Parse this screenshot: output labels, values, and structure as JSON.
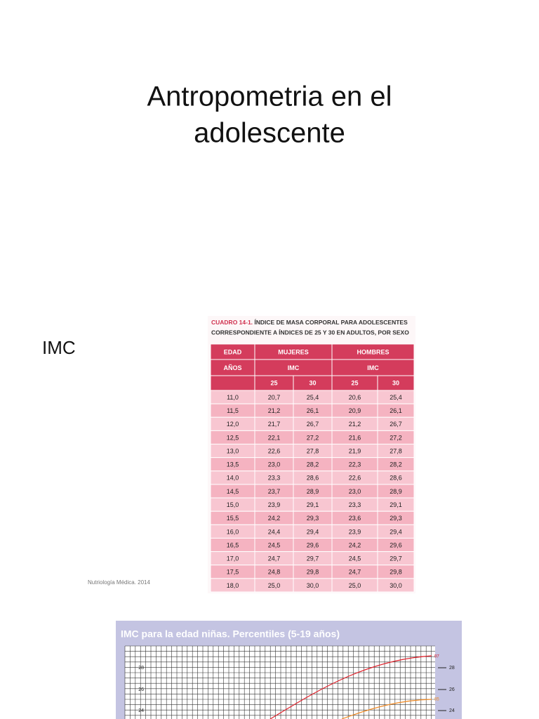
{
  "slide": {
    "title": [
      "Antropometria en el",
      "adolescente"
    ],
    "label": "IMC",
    "citation": "Nutriología Médica. 2014",
    "table": {
      "caption_label": "CUADRO 14-1.",
      "caption_line1": "ÍNDICE DE MASA CORPORAL PARA ADOLESCENTES",
      "caption_line2": "CORRESPONDIENTE A ÍNDICES DE 25 Y 30 EN ADULTOS, POR SEXO",
      "header1": [
        "EDAD",
        "MUJERES",
        "HOMBRES"
      ],
      "header2": [
        "AÑOS",
        "IMC",
        "IMC"
      ],
      "header3": [
        "25",
        "30",
        "25",
        "30"
      ],
      "rows": [
        [
          "11,0",
          "20,7",
          "25,4",
          "20,6",
          "25,4"
        ],
        [
          "11,5",
          "21,2",
          "26,1",
          "20,9",
          "26,1"
        ],
        [
          "12,0",
          "21,7",
          "26,7",
          "21,2",
          "26,7"
        ],
        [
          "12,5",
          "22,1",
          "27,2",
          "21,6",
          "27,2"
        ],
        [
          "13,0",
          "22,6",
          "27,8",
          "21,9",
          "27,8"
        ],
        [
          "13,5",
          "23,0",
          "28,2",
          "22,3",
          "28,2"
        ],
        [
          "14,0",
          "23,3",
          "28,6",
          "22,6",
          "28,6"
        ],
        [
          "14,5",
          "23,7",
          "28,9",
          "23,0",
          "28,9"
        ],
        [
          "15,0",
          "23,9",
          "29,1",
          "23,3",
          "29,1"
        ],
        [
          "15,5",
          "24,2",
          "29,3",
          "23,6",
          "29,3"
        ],
        [
          "16,0",
          "24,4",
          "29,4",
          "23,9",
          "29,4"
        ],
        [
          "16,5",
          "24,5",
          "29,6",
          "24,2",
          "29,6"
        ],
        [
          "17,0",
          "24,7",
          "29,7",
          "24,5",
          "29,7"
        ],
        [
          "17,5",
          "24,8",
          "29,8",
          "24,7",
          "29,8"
        ],
        [
          "18,0",
          "25,0",
          "30,0",
          "25,0",
          "30,0"
        ]
      ]
    },
    "figure": {
      "title": "IMC para la edad niñas. Percentiles (5-19 años)",
      "y_labels": [
        "28",
        "26",
        "24"
      ],
      "curve_labels": [
        "97",
        "85"
      ]
    }
  }
}
